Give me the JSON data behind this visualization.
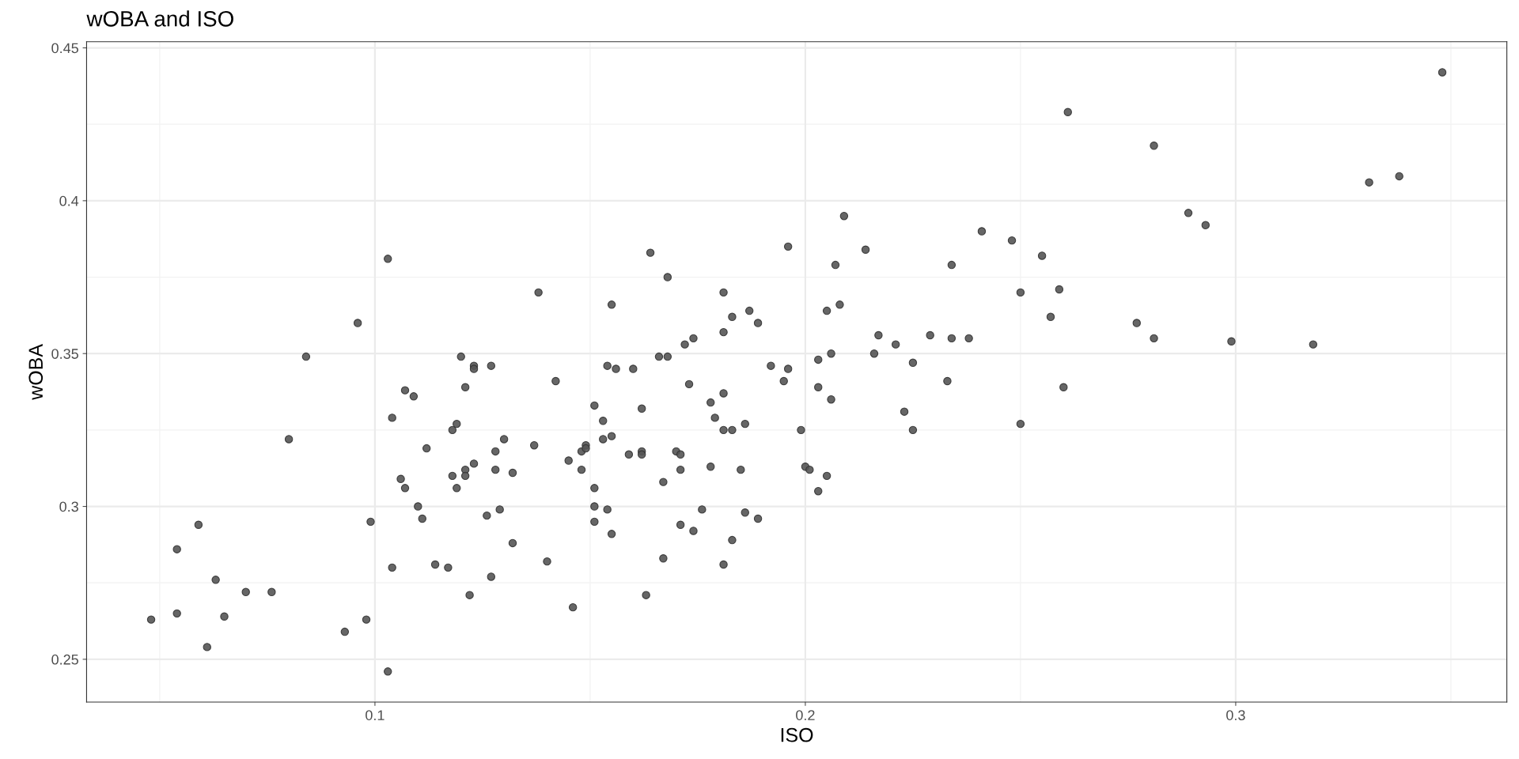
{
  "chart_data": {
    "type": "scatter",
    "title": "wOBA and ISO",
    "xlabel": "ISO",
    "ylabel": "wOBA",
    "xlim": [
      0.033,
      0.363
    ],
    "ylim": [
      0.236,
      0.452
    ],
    "xticks": [
      0.1,
      0.2,
      0.3
    ],
    "yticks": [
      0.25,
      0.3,
      0.35,
      0.4,
      0.45
    ],
    "grid": true,
    "marker": "circle",
    "series": [
      {
        "color": "#555555",
        "x": [
          0.048,
          0.054,
          0.054,
          0.059,
          0.061,
          0.063,
          0.065,
          0.07,
          0.076,
          0.08,
          0.084,
          0.093,
          0.096,
          0.098,
          0.099,
          0.103,
          0.104,
          0.104,
          0.103,
          0.106,
          0.107,
          0.107,
          0.109,
          0.11,
          0.111,
          0.112,
          0.114,
          0.117,
          0.118,
          0.118,
          0.119,
          0.119,
          0.12,
          0.121,
          0.121,
          0.121,
          0.122,
          0.123,
          0.123,
          0.123,
          0.126,
          0.127,
          0.127,
          0.128,
          0.128,
          0.129,
          0.13,
          0.132,
          0.132,
          0.137,
          0.138,
          0.14,
          0.142,
          0.145,
          0.146,
          0.148,
          0.148,
          0.149,
          0.149,
          0.151,
          0.151,
          0.151,
          0.151,
          0.153,
          0.153,
          0.154,
          0.154,
          0.155,
          0.155,
          0.155,
          0.156,
          0.159,
          0.16,
          0.162,
          0.162,
          0.162,
          0.163,
          0.164,
          0.166,
          0.167,
          0.167,
          0.168,
          0.168,
          0.17,
          0.171,
          0.171,
          0.171,
          0.172,
          0.173,
          0.174,
          0.174,
          0.176,
          0.178,
          0.178,
          0.179,
          0.181,
          0.181,
          0.181,
          0.181,
          0.181,
          0.183,
          0.183,
          0.183,
          0.185,
          0.186,
          0.186,
          0.187,
          0.189,
          0.189,
          0.192,
          0.195,
          0.196,
          0.196,
          0.199,
          0.2,
          0.201,
          0.203,
          0.203,
          0.203,
          0.205,
          0.205,
          0.206,
          0.206,
          0.207,
          0.208,
          0.209,
          0.214,
          0.216,
          0.217,
          0.221,
          0.223,
          0.225,
          0.225,
          0.229,
          0.233,
          0.234,
          0.234,
          0.238,
          0.241,
          0.248,
          0.25,
          0.25,
          0.255,
          0.257,
          0.259,
          0.26,
          0.261,
          0.277,
          0.281,
          0.281,
          0.289,
          0.293,
          0.299,
          0.318,
          0.331,
          0.338,
          0.348
        ],
        "values": [
          0.263,
          0.286,
          0.265,
          0.294,
          0.254,
          0.276,
          0.264,
          0.272,
          0.272,
          0.322,
          0.349,
          0.259,
          0.36,
          0.263,
          0.295,
          0.246,
          0.28,
          0.329,
          0.381,
          0.309,
          0.306,
          0.338,
          0.336,
          0.3,
          0.296,
          0.319,
          0.281,
          0.28,
          0.31,
          0.325,
          0.306,
          0.327,
          0.349,
          0.312,
          0.339,
          0.31,
          0.271,
          0.314,
          0.346,
          0.345,
          0.297,
          0.346,
          0.277,
          0.318,
          0.312,
          0.299,
          0.322,
          0.311,
          0.288,
          0.32,
          0.37,
          0.282,
          0.341,
          0.315,
          0.267,
          0.318,
          0.312,
          0.32,
          0.319,
          0.306,
          0.295,
          0.333,
          0.3,
          0.328,
          0.322,
          0.346,
          0.299,
          0.323,
          0.291,
          0.366,
          0.345,
          0.317,
          0.345,
          0.318,
          0.317,
          0.332,
          0.271,
          0.383,
          0.349,
          0.308,
          0.283,
          0.349,
          0.375,
          0.318,
          0.294,
          0.312,
          0.317,
          0.353,
          0.34,
          0.355,
          0.292,
          0.299,
          0.334,
          0.313,
          0.329,
          0.281,
          0.325,
          0.337,
          0.37,
          0.357,
          0.325,
          0.362,
          0.289,
          0.312,
          0.327,
          0.298,
          0.364,
          0.36,
          0.296,
          0.346,
          0.341,
          0.345,
          0.385,
          0.325,
          0.313,
          0.312,
          0.305,
          0.339,
          0.348,
          0.31,
          0.364,
          0.35,
          0.335,
          0.379,
          0.366,
          0.395,
          0.384,
          0.35,
          0.356,
          0.353,
          0.331,
          0.347,
          0.325,
          0.356,
          0.341,
          0.379,
          0.355,
          0.355,
          0.39,
          0.387,
          0.37,
          0.327,
          0.382,
          0.362,
          0.371,
          0.339,
          0.429,
          0.36,
          0.418,
          0.355,
          0.396,
          0.392,
          0.354,
          0.353,
          0.406,
          0.408,
          0.442
        ]
      }
    ]
  }
}
